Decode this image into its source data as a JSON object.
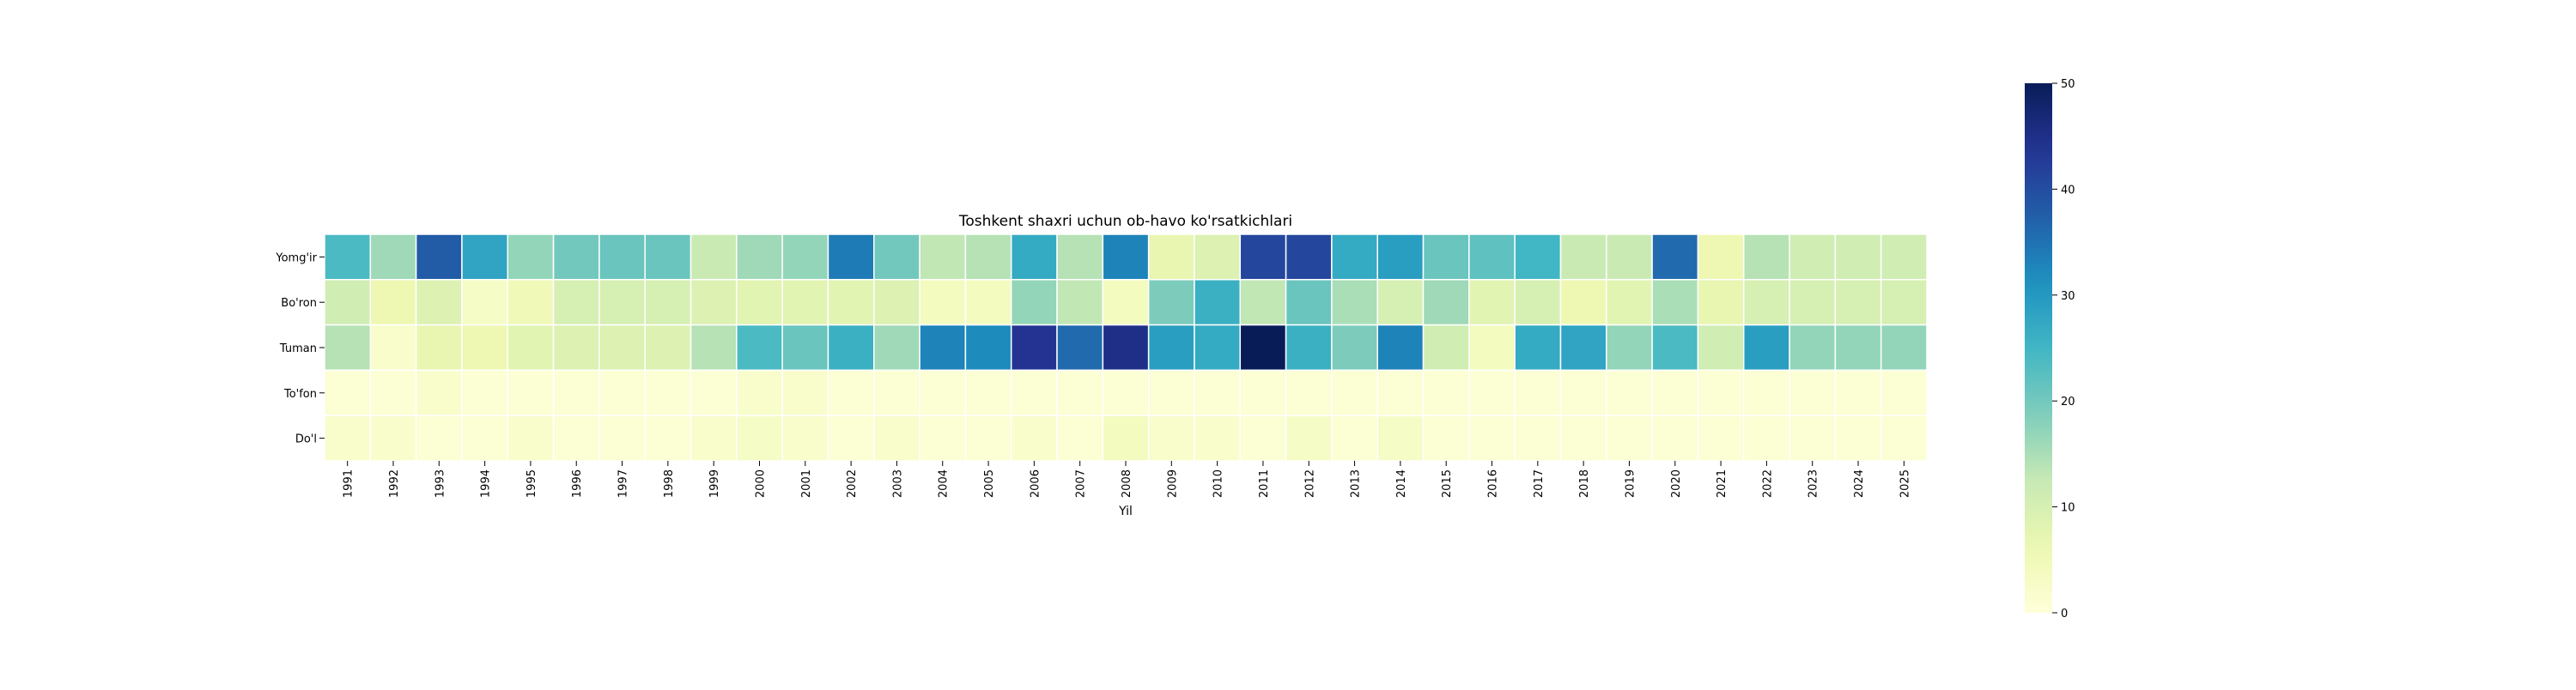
{
  "chart_data": {
    "type": "heatmap",
    "title": "Toshkent shaxri uchun ob-havo ko'rsatkichlari",
    "xlabel": "Yil",
    "ylabel": "",
    "x": [
      "1991",
      "1992",
      "1993",
      "1994",
      "1995",
      "1996",
      "1997",
      "1998",
      "1999",
      "2000",
      "2001",
      "2002",
      "2003",
      "2004",
      "2005",
      "2006",
      "2007",
      "2008",
      "2009",
      "2010",
      "2011",
      "2012",
      "2013",
      "2014",
      "2015",
      "2016",
      "2017",
      "2018",
      "2019",
      "2020",
      "2021",
      "2022",
      "2023",
      "2024",
      "2025"
    ],
    "y": [
      "Yomg'ir",
      "Bo'ron",
      "Tuman",
      "To'fon",
      "Do'l"
    ],
    "values": [
      [
        24,
        16,
        38,
        28,
        17,
        20,
        21,
        21,
        12,
        16,
        17,
        34,
        20,
        13,
        14,
        27,
        14,
        33,
        7,
        9,
        41,
        41,
        27,
        29,
        21,
        22,
        25,
        12,
        12,
        36,
        6,
        14,
        11,
        11,
        11
      ],
      [
        11,
        6,
        9,
        3,
        5,
        10,
        10,
        10,
        9,
        8,
        8,
        8,
        9,
        4,
        4,
        17,
        13,
        4,
        19,
        26,
        13,
        21,
        15,
        10,
        16,
        8,
        10,
        6,
        8,
        15,
        7,
        10,
        10,
        10,
        10
      ],
      [
        14,
        2,
        7,
        6,
        8,
        9,
        9,
        9,
        14,
        24,
        21,
        26,
        16,
        33,
        32,
        44,
        36,
        45,
        29,
        27,
        50,
        26,
        19,
        33,
        11,
        4,
        27,
        28,
        17,
        24,
        11,
        29,
        17,
        17,
        17
      ],
      [
        1,
        1,
        2,
        1,
        1,
        1,
        1,
        1,
        1,
        2,
        2,
        1,
        1,
        1,
        1,
        1,
        1,
        1,
        1,
        1,
        1,
        1,
        1,
        1,
        1,
        1,
        1,
        1,
        1,
        1,
        1,
        1,
        1,
        1,
        1
      ],
      [
        2,
        2,
        1,
        1,
        2,
        1,
        1,
        1,
        2,
        3,
        2,
        1,
        2,
        1,
        1,
        2,
        1,
        4,
        2,
        2,
        1,
        3,
        1,
        3,
        1,
        1,
        1,
        1,
        1,
        1,
        1,
        1,
        1,
        1,
        1
      ]
    ],
    "zlim": [
      0,
      50
    ],
    "colormap": "YlGnBu",
    "colorbar": {
      "ticks": [
        0,
        10,
        20,
        30,
        40,
        50
      ],
      "labels": [
        "0",
        "10",
        "20",
        "30",
        "40",
        "50"
      ]
    },
    "grid": false,
    "legend": "none"
  }
}
